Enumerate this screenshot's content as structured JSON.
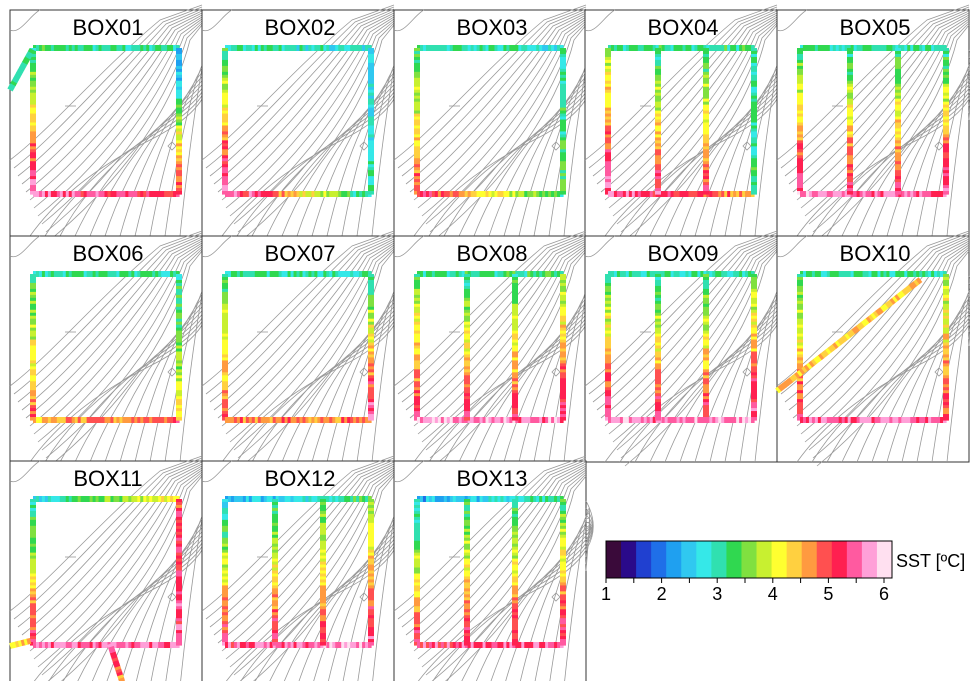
{
  "chart_data": {
    "type": "heatmap",
    "layout": "small-multiples grid, 3 rows x 5 columns",
    "panels": [
      {
        "title": "BOX01",
        "track": "box",
        "verticals": 0
      },
      {
        "title": "BOX02",
        "track": "box",
        "verticals": 0
      },
      {
        "title": "BOX03",
        "track": "box",
        "verticals": 0
      },
      {
        "title": "BOX04",
        "track": "box",
        "verticals": 2
      },
      {
        "title": "BOX05",
        "track": "box",
        "verticals": 2
      },
      {
        "title": "BOX06",
        "track": "box",
        "verticals": 0
      },
      {
        "title": "BOX07",
        "track": "box",
        "verticals": 0
      },
      {
        "title": "BOX08",
        "track": "box",
        "verticals": 2
      },
      {
        "title": "BOX09",
        "track": "box",
        "verticals": 2
      },
      {
        "title": "BOX10",
        "track": "box-with-diagonal",
        "verticals": 0
      },
      {
        "title": "BOX11",
        "track": "box",
        "verticals": 0
      },
      {
        "title": "BOX12",
        "track": "box",
        "verticals": 2
      },
      {
        "title": "BOX13",
        "track": "box",
        "verticals": 2
      }
    ],
    "colorbar": {
      "label": "SST [ºC]",
      "min": 1,
      "max": 6,
      "tick_labels": [
        "1",
        "2",
        "3",
        "4",
        "5",
        "6"
      ],
      "colors": [
        "#3a0a3a",
        "#2a0a8a",
        "#2040d0",
        "#1f6fe8",
        "#1fa0f0",
        "#30c8f0",
        "#35e8e8",
        "#30e0b0",
        "#30d850",
        "#80e040",
        "#c8f030",
        "#ffff30",
        "#ffd040",
        "#ff9a40",
        "#ff5050",
        "#ff2050",
        "#ff5aa0",
        "#ffa0d8",
        "#ffe0f0"
      ]
    },
    "contour_color": "#999999",
    "track_color_notes": {
      "BOX01": "north edge cyan/blue, left side cyan->red southward, south edge red/orange, right side blue/black then red",
      "BOX10": "diagonal track yellow->orange->red->green toward northeast"
    }
  }
}
